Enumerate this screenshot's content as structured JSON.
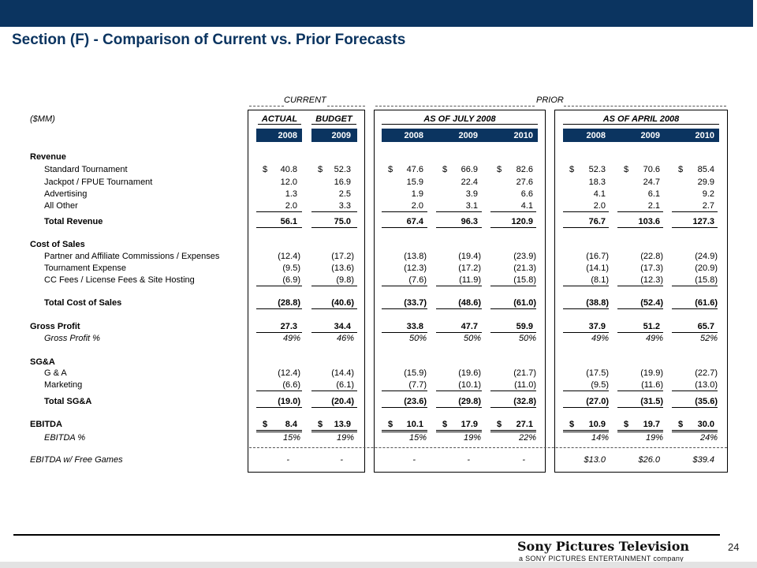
{
  "title": "Section (F) - Comparison of Current vs. Prior Forecasts",
  "units_label": "($MM)",
  "headers": {
    "current": "CURRENT",
    "prior": "PRIOR",
    "actual": "ACTUAL",
    "budget": "BUDGET",
    "july": "AS OF JULY 2008",
    "april": "AS OF APRIL 2008",
    "years": [
      "2008",
      "2009",
      "2008",
      "2009",
      "2010",
      "2008",
      "2009",
      "2010"
    ]
  },
  "rows": [
    {
      "label": "Revenue",
      "style": "section",
      "dollar": false,
      "values": []
    },
    {
      "label": "Standard Tournament",
      "style": "item",
      "dollar": true,
      "values": [
        "40.8",
        "52.3",
        "47.6",
        "66.9",
        "82.6",
        "52.3",
        "70.6",
        "85.4"
      ]
    },
    {
      "label": "Jackpot / FPUE Tournament",
      "style": "item",
      "dollar": false,
      "values": [
        "12.0",
        "16.9",
        "15.9",
        "22.4",
        "27.6",
        "18.3",
        "24.7",
        "29.9"
      ]
    },
    {
      "label": "Advertising",
      "style": "item",
      "dollar": false,
      "values": [
        "1.3",
        "2.5",
        "1.9",
        "3.9",
        "6.6",
        "4.1",
        "6.1",
        "9.2"
      ]
    },
    {
      "label": "All Other",
      "style": "item",
      "dollar": false,
      "values": [
        "2.0",
        "3.3",
        "2.0",
        "3.1",
        "4.1",
        "2.0",
        "2.1",
        "2.7"
      ]
    },
    {
      "label": "Total Revenue",
      "style": "total",
      "dollar": false,
      "values": [
        "56.1",
        "75.0",
        "67.4",
        "96.3",
        "120.9",
        "76.7",
        "103.6",
        "127.3"
      ]
    },
    {
      "label": "Cost of Sales",
      "style": "section",
      "dollar": false,
      "values": []
    },
    {
      "label": "Partner and Affiliate Commissions / Expenses",
      "style": "item",
      "dollar": false,
      "values": [
        "(12.4)",
        "(17.2)",
        "(13.8)",
        "(19.4)",
        "(23.9)",
        "(16.7)",
        "(22.8)",
        "(24.9)"
      ]
    },
    {
      "label": "Tournament Expense",
      "style": "item",
      "dollar": false,
      "values": [
        "(9.5)",
        "(13.6)",
        "(12.3)",
        "(17.2)",
        "(21.3)",
        "(14.1)",
        "(17.3)",
        "(20.9)"
      ]
    },
    {
      "label": "CC Fees / License Fees & Site Hosting",
      "style": "item",
      "dollar": false,
      "values": [
        "(6.9)",
        "(9.8)",
        "(7.6)",
        "(11.9)",
        "(15.8)",
        "(8.1)",
        "(12.3)",
        "(15.8)"
      ]
    },
    {
      "label": "Total Cost of Sales",
      "style": "total",
      "dollar": false,
      "values": [
        "(28.8)",
        "(40.6)",
        "(33.7)",
        "(48.6)",
        "(61.0)",
        "(38.8)",
        "(52.4)",
        "(61.6)"
      ]
    },
    {
      "label": "Gross Profit",
      "style": "section",
      "dollar": false,
      "values": [
        "27.3",
        "34.4",
        "33.8",
        "47.7",
        "59.9",
        "37.9",
        "51.2",
        "65.7"
      ]
    },
    {
      "label": "Gross Profit %",
      "style": "pct",
      "dollar": false,
      "values": [
        "49%",
        "46%",
        "50%",
        "50%",
        "50%",
        "49%",
        "49%",
        "52%"
      ]
    },
    {
      "label": "SG&A",
      "style": "section",
      "dollar": false,
      "values": []
    },
    {
      "label": "G & A",
      "style": "item",
      "dollar": false,
      "values": [
        "(12.4)",
        "(14.4)",
        "(15.9)",
        "(19.6)",
        "(21.7)",
        "(17.5)",
        "(19.9)",
        "(22.7)"
      ]
    },
    {
      "label": "Marketing",
      "style": "item",
      "dollar": false,
      "values": [
        "(6.6)",
        "(6.1)",
        "(7.7)",
        "(10.1)",
        "(11.0)",
        "(9.5)",
        "(11.6)",
        "(13.0)"
      ]
    },
    {
      "label": "Total SG&A",
      "style": "total",
      "dollar": false,
      "values": [
        "(19.0)",
        "(20.4)",
        "(23.6)",
        "(29.8)",
        "(32.8)",
        "(27.0)",
        "(31.5)",
        "(35.6)"
      ]
    },
    {
      "label": "EBITDA",
      "style": "section",
      "dollar": true,
      "values": [
        "8.4",
        "13.9",
        "10.1",
        "17.9",
        "27.1",
        "10.9",
        "19.7",
        "30.0"
      ]
    },
    {
      "label": "EBITDA %",
      "style": "pct",
      "dollar": false,
      "values": [
        "15%",
        "19%",
        "15%",
        "19%",
        "22%",
        "14%",
        "19%",
        "24%"
      ]
    },
    {
      "label": "EBITDA w/ Free Games",
      "style": "free",
      "dollar": false,
      "values": [
        "-",
        "-",
        "-",
        "-",
        "-",
        "$13.0",
        "$26.0",
        "$39.4"
      ]
    }
  ],
  "currency_symbol": "$",
  "logo": {
    "main": "Sony Pictures Television",
    "sub": "a SONY PICTURES ENTERTAINMENT company"
  },
  "page_number": "24",
  "colors": {
    "header_navy": "#0b3460"
  }
}
